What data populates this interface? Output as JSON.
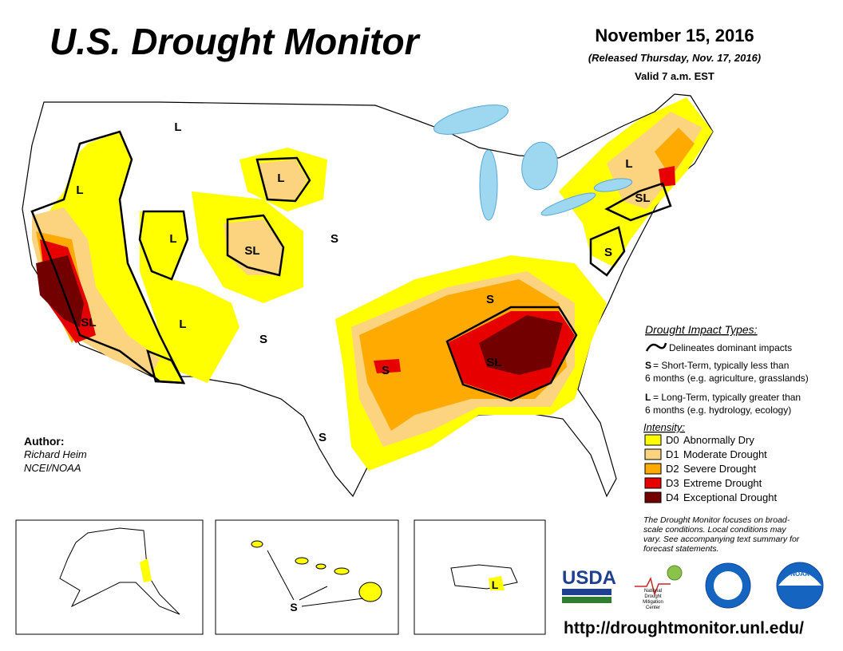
{
  "header": {
    "title": "U.S. Drought Monitor",
    "date": "November 15, 2016",
    "released": "(Released Thursday, Nov. 17, 2016)",
    "valid": "Valid 7 a.m. EST"
  },
  "impact_types": {
    "heading": "Drought Impact Types:",
    "boundary": "Delineates dominant impacts",
    "items": [
      {
        "symbol": "S",
        "lines": [
          "= Short-Term, typically less than",
          "6 months (e.g. agriculture, grasslands)"
        ]
      },
      {
        "symbol": "L",
        "lines": [
          "= Long-Term, typically greater than",
          "6 months (e.g. hydrology, ecology)"
        ]
      }
    ]
  },
  "intensity": {
    "heading": "Intensity:",
    "levels": [
      {
        "code": "D0",
        "name": "Abnormally Dry",
        "color": "#ffff00"
      },
      {
        "code": "D1",
        "name": "Moderate Drought",
        "color": "#fcd37f"
      },
      {
        "code": "D2",
        "name": "Severe Drought",
        "color": "#ffaa00"
      },
      {
        "code": "D3",
        "name": "Extreme Drought",
        "color": "#e60000"
      },
      {
        "code": "D4",
        "name": "Exceptional Drought",
        "color": "#730000"
      }
    ]
  },
  "note": [
    "The Drought Monitor focuses on broad-",
    "scale conditions. Local conditions may",
    "vary. See accompanying text summary for",
    "forecast statements."
  ],
  "author": {
    "label": "Author:",
    "name": "Richard Heim",
    "org": "NCEI/NOAA"
  },
  "map_labels": [
    "L",
    "L",
    "L",
    "L",
    "SL",
    "L",
    "S",
    "SL",
    "S",
    "S",
    "SL",
    "L",
    "S",
    "SL",
    "S",
    "S"
  ],
  "inset_labels": [
    "L",
    "S"
  ],
  "logos": {
    "usda": "USDA",
    "ndmc": [
      "National",
      "Drought",
      "Mitigation",
      "Center"
    ],
    "noaa": "NOAA"
  },
  "url": "http://droughtmonitor.unl.edu/"
}
